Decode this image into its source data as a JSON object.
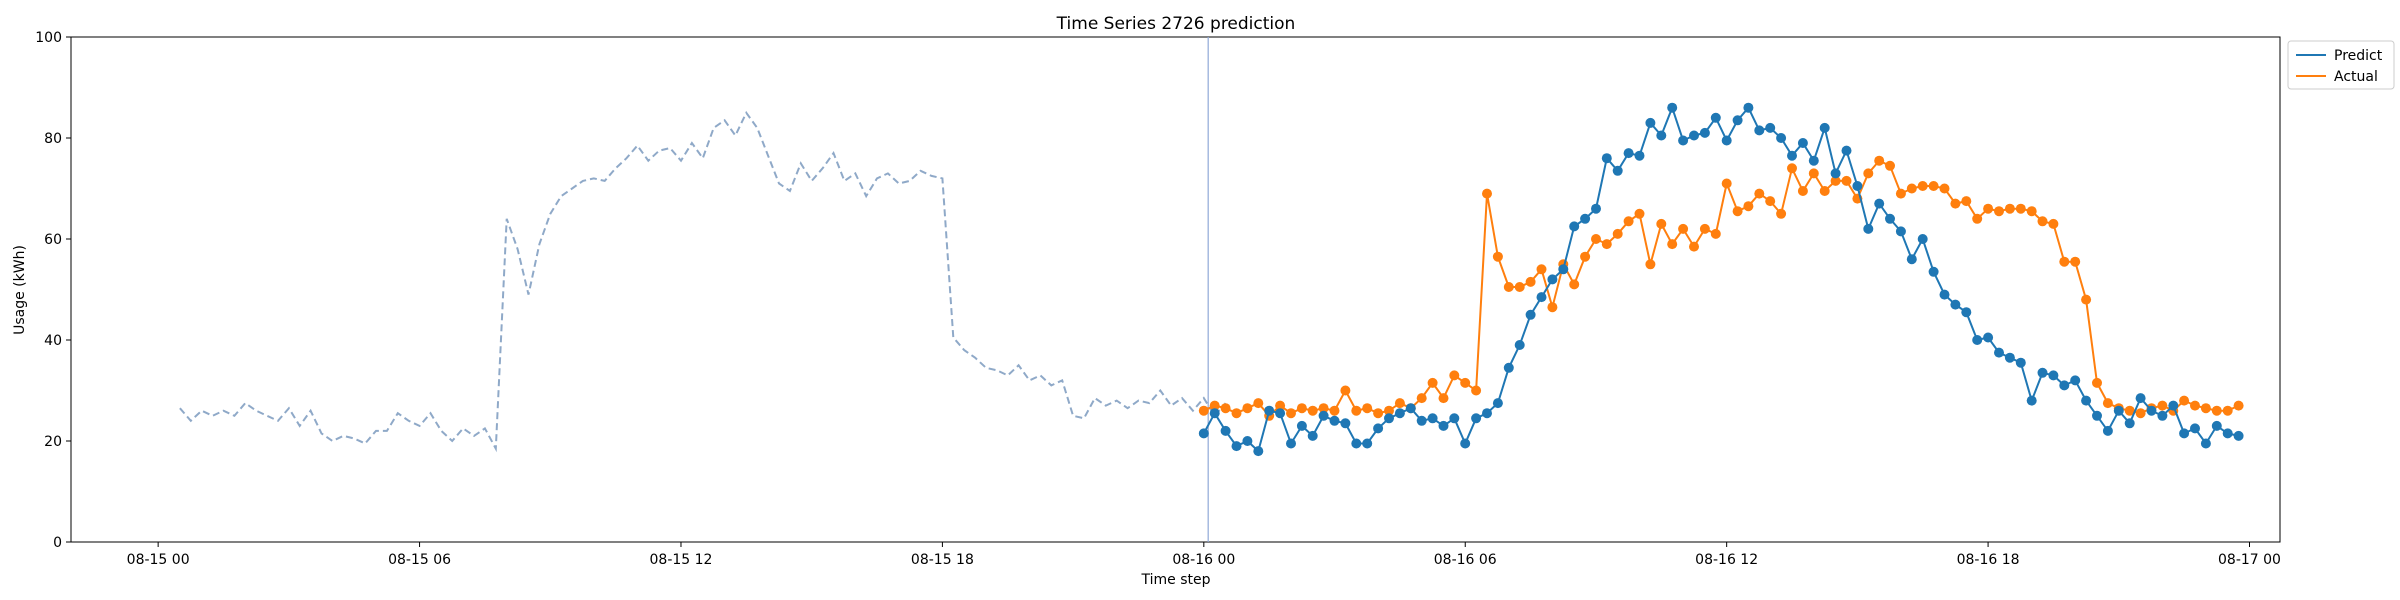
{
  "chart_data": {
    "type": "line",
    "title": "Time Series 2726 prediction",
    "xlabel": "Time step",
    "ylabel": "Usage (kWh)",
    "ylim": [
      0,
      100
    ],
    "y_ticks": [
      0,
      20,
      40,
      60,
      80,
      100
    ],
    "x_tick_labels": [
      "08-15 00",
      "08-15 06",
      "08-15 12",
      "08-15 18",
      "08-16 00",
      "08-16 06",
      "08-16 12",
      "08-16 18",
      "08-17 00"
    ],
    "x_unit": "hours since 08-15 00",
    "x_ticks": [
      0,
      6,
      12,
      18,
      24,
      30,
      36,
      42,
      48
    ],
    "xlim": [
      -2,
      48.7
    ],
    "vline_x": 24.1,
    "legend_position": "top-right",
    "colors": {
      "history": "#8fa9c8",
      "predict": "#1f77b4",
      "actual": "#ff7f0e",
      "vline": "#8fa9d8"
    },
    "history": {
      "x_start": 0.5,
      "x_step": 0.25,
      "values": [
        26.5,
        24.0,
        26.0,
        25.0,
        26.0,
        25.0,
        27.5,
        26.0,
        25.0,
        24.0,
        26.5,
        23.0,
        26.0,
        21.5,
        20.0,
        21.0,
        20.5,
        19.5,
        22.0,
        22.0,
        25.5,
        24.0,
        23.0,
        25.5,
        22.0,
        20.0,
        22.5,
        21.0,
        22.5,
        18.5,
        64.0,
        58.0,
        49.0,
        59.0,
        65.0,
        68.5,
        70.0,
        71.5,
        72.0,
        71.5,
        74.0,
        76.0,
        78.5,
        75.5,
        77.5,
        78.0,
        75.5,
        79.0,
        76.0,
        82.0,
        83.5,
        80.5,
        85.0,
        82.0,
        76.5,
        71.0,
        69.5,
        75.0,
        71.5,
        74.0,
        77.0,
        71.5,
        73.0,
        68.5,
        72.0,
        73.0,
        71.0,
        71.5,
        73.5,
        72.5,
        72.0,
        40.5,
        38.0,
        36.5,
        34.5,
        34.0,
        33.0,
        35.0,
        32.0,
        33.0,
        31.0,
        32.0,
        25.0,
        24.5,
        28.5,
        27.0,
        28.0,
        26.5,
        28.0,
        27.5,
        30.0,
        27.0,
        28.5,
        26.0,
        28.5,
        25.0,
        27.5
      ]
    },
    "series": [
      {
        "name": "Predict",
        "x_start": 24.0,
        "x_step": 0.25,
        "values": [
          21.5,
          25.5,
          22.0,
          19.0,
          20.0,
          18.0,
          26.0,
          25.5,
          19.5,
          23.0,
          21.0,
          25.0,
          24.0,
          23.5,
          19.5,
          19.5,
          22.5,
          24.5,
          25.5,
          26.5,
          24.0,
          24.5,
          23.0,
          24.5,
          19.5,
          24.5,
          25.5,
          27.5,
          34.5,
          39.0,
          45.0,
          48.5,
          52.0,
          54.0,
          62.5,
          64.0,
          66.0,
          76.0,
          73.5,
          77.0,
          76.5,
          83.0,
          80.5,
          86.0,
          79.5,
          80.5,
          81.0,
          84.0,
          79.5,
          83.5,
          86.0,
          81.5,
          82.0,
          80.0,
          76.5,
          79.0,
          75.5,
          82.0,
          73.0,
          77.5,
          70.5,
          62.0,
          67.0,
          64.0,
          61.5,
          56.0,
          60.0,
          53.5,
          49.0,
          47.0,
          45.5,
          40.0,
          40.5,
          37.5,
          36.5,
          35.5,
          28.0,
          33.5,
          33.0,
          31.0,
          32.0,
          28.0,
          25.0,
          22.0,
          26.0,
          23.5,
          28.5,
          26.0,
          25.0,
          27.0,
          21.5,
          22.5,
          19.5,
          23.0,
          21.5,
          21.0
        ]
      },
      {
        "name": "Actual",
        "x_start": 24.0,
        "x_step": 0.25,
        "values": [
          26.0,
          27.0,
          26.5,
          25.5,
          26.5,
          27.5,
          25.0,
          27.0,
          25.5,
          26.5,
          26.0,
          26.5,
          26.0,
          30.0,
          26.0,
          26.5,
          25.5,
          26.0,
          27.5,
          26.5,
          28.5,
          31.5,
          28.5,
          33.0,
          31.5,
          30.0,
          69.0,
          56.5,
          50.5,
          50.5,
          51.5,
          54.0,
          46.5,
          55.0,
          51.0,
          56.5,
          60.0,
          59.0,
          61.0,
          63.5,
          65.0,
          55.0,
          63.0,
          59.0,
          62.0,
          58.5,
          62.0,
          61.0,
          71.0,
          65.5,
          66.5,
          69.0,
          67.5,
          65.0,
          74.0,
          69.5,
          73.0,
          69.5,
          71.5,
          71.5,
          68.0,
          73.0,
          75.5,
          74.5,
          69.0,
          70.0,
          70.5,
          70.5,
          70.0,
          67.0,
          67.5,
          64.0,
          66.0,
          65.5,
          66.0,
          66.0,
          65.5,
          63.5,
          63.0,
          55.5,
          55.5,
          48.0,
          31.5,
          27.5,
          26.5,
          26.0,
          25.5,
          26.5,
          27.0,
          26.0,
          28.0,
          27.0,
          26.5,
          26.0,
          26.0,
          27.0
        ]
      }
    ]
  }
}
